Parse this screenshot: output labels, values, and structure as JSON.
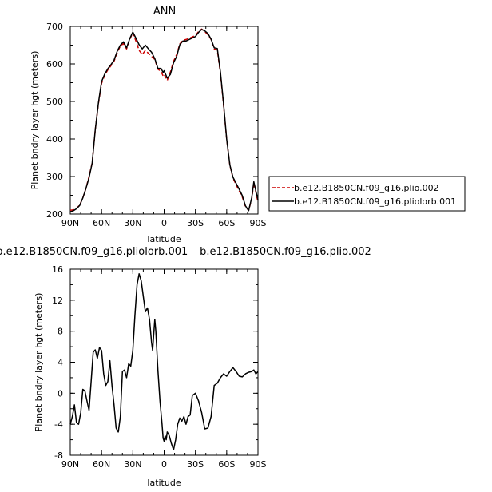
{
  "chart_data": [
    {
      "type": "line",
      "title": "ANN",
      "xlabel": "latitude",
      "ylabel": "Planet bndry layer hgt (meters)",
      "xlim": [
        90,
        -90
      ],
      "ylim": [
        200,
        700
      ],
      "x_ticks": [
        90,
        60,
        30,
        0,
        -30,
        -60,
        -90
      ],
      "x_tick_labels": [
        "90N",
        "60N",
        "30N",
        "0",
        "30S",
        "60S",
        "90S"
      ],
      "y_ticks": [
        200,
        300,
        400,
        500,
        600,
        700
      ],
      "legend_position": "right",
      "series": [
        {
          "name": "b.e12.B1850CN.f09_g16.plio.002",
          "color": "#cc0000",
          "dash": "dashed",
          "x": [
            90,
            87,
            84,
            81,
            78,
            75,
            72,
            69,
            66,
            63,
            60,
            57,
            54,
            51,
            48,
            45,
            42,
            39,
            36,
            33,
            30,
            27,
            24,
            21,
            18,
            15,
            12,
            9,
            6,
            3,
            1,
            0,
            -3,
            -6,
            -9,
            -12,
            -15,
            -18,
            -21,
            -24,
            -27,
            -30,
            -33,
            -36,
            -39,
            -42,
            -45,
            -48,
            -51,
            -54,
            -57,
            -60,
            -63,
            -66,
            -69,
            -72,
            -75,
            -78,
            -81,
            -84,
            -86,
            -88,
            -90
          ],
          "y": [
            210,
            211,
            215,
            224,
            243,
            268,
            300,
            336,
            425,
            495,
            548,
            570,
            584,
            595,
            607,
            630,
            648,
            654,
            640,
            665,
            683,
            660,
            636,
            625,
            636,
            628,
            620,
            612,
            586,
            580,
            568,
            572,
            556,
            578,
            607,
            625,
            653,
            663,
            665,
            668,
            672,
            676,
            686,
            693,
            686,
            678,
            665,
            640,
            637,
            575,
            490,
            400,
            330,
            296,
            278,
            262,
            245,
            220,
            210,
            240,
            283,
            258,
            232
          ]
        },
        {
          "name": "b.e12.B1850CN.f09_g16.pliolorb.001",
          "color": "#000000",
          "dash": "solid",
          "x": [
            90,
            87,
            84,
            81,
            78,
            75,
            72,
            69,
            66,
            63,
            60,
            57,
            54,
            51,
            48,
            45,
            42,
            39,
            36,
            33,
            30,
            27,
            24,
            21,
            18,
            15,
            12,
            9,
            6,
            3,
            1,
            0,
            -3,
            -6,
            -9,
            -12,
            -15,
            -18,
            -21,
            -24,
            -27,
            -30,
            -33,
            -36,
            -39,
            -42,
            -45,
            -48,
            -51,
            -54,
            -57,
            -60,
            -63,
            -66,
            -69,
            -72,
            -75,
            -78,
            -81,
            -84,
            -86,
            -88,
            -90
          ],
          "y": [
            206,
            209,
            214,
            223,
            243,
            268,
            297,
            336,
            425,
            497,
            553,
            573,
            587,
            598,
            610,
            634,
            650,
            659,
            643,
            667,
            685,
            668,
            651,
            640,
            650,
            640,
            631,
            614,
            588,
            588,
            577,
            582,
            562,
            572,
            603,
            620,
            651,
            661,
            661,
            665,
            669,
            673,
            684,
            692,
            688,
            681,
            666,
            643,
            641,
            578,
            494,
            400,
            331,
            298,
            282,
            266,
            249,
            222,
            209,
            244,
            286,
            261,
            238
          ]
        }
      ]
    },
    {
      "type": "line",
      "title": "b.e12.B1850CN.f09_g16.pliolorb.001 – b.e12.B1850CN.f09_g16.plio.002",
      "xlabel": "latitude",
      "ylabel": "Planet bndry layer hgt (meters)",
      "xlim": [
        90,
        -90
      ],
      "ylim": [
        -8,
        16
      ],
      "x_ticks": [
        90,
        60,
        30,
        0,
        -30,
        -60,
        -90
      ],
      "x_tick_labels": [
        "90N",
        "60N",
        "30N",
        "0",
        "30S",
        "60S",
        "90S"
      ],
      "y_ticks": [
        -8,
        -4,
        0,
        4,
        8,
        12,
        16
      ],
      "series": [
        {
          "color": "#000000",
          "dash": "solid",
          "x": [
            90,
            88,
            86,
            84,
            82,
            80,
            78,
            76,
            74,
            72,
            70,
            68,
            66,
            64,
            62,
            60,
            58,
            56,
            54,
            52,
            50,
            48,
            46,
            44,
            42,
            40,
            38,
            36,
            34,
            32,
            30,
            28,
            26,
            24,
            22,
            20,
            18,
            16,
            14,
            13,
            12,
            11,
            10,
            9,
            8,
            6,
            4,
            2,
            1,
            0,
            -1,
            -2,
            -3,
            -5,
            -7,
            -9,
            -11,
            -13,
            -15,
            -17,
            -19,
            -21,
            -23,
            -25,
            -27,
            -30,
            -33,
            -36,
            -39,
            -42,
            -45,
            -48,
            -51,
            -54,
            -57,
            -60,
            -63,
            -66,
            -69,
            -72,
            -75,
            -78,
            -81,
            -84,
            -86,
            -88,
            -90
          ],
          "y": [
            -4,
            -3,
            -1.5,
            -3.8,
            -4.0,
            -2.5,
            0.5,
            0.3,
            -1.0,
            -2.2,
            1.5,
            5.3,
            5.6,
            4.5,
            5.9,
            5.5,
            2.5,
            1.0,
            1.5,
            4.2,
            1.0,
            -1.5,
            -4.5,
            -5.0,
            -3.0,
            2.8,
            3.0,
            2.0,
            3.8,
            3.5,
            5.5,
            10.0,
            14.0,
            15.4,
            14.5,
            12.5,
            10.5,
            11.0,
            9.5,
            8.0,
            6.5,
            5.5,
            7.5,
            9.5,
            8.0,
            3.0,
            -1.0,
            -4.0,
            -5.8,
            -6.2,
            -5.5,
            -6.0,
            -5.0,
            -5.5,
            -6.5,
            -7.3,
            -6.0,
            -4.0,
            -3.2,
            -3.6,
            -3.0,
            -4.0,
            -3.0,
            -2.8,
            -0.3,
            0.0,
            -1.0,
            -2.5,
            -4.6,
            -4.5,
            -3.0,
            1.0,
            1.3,
            2.0,
            2.5,
            2.2,
            2.8,
            3.3,
            2.8,
            2.2,
            2.1,
            2.5,
            2.7,
            2.8,
            3.0,
            2.5,
            2.8
          ]
        }
      ]
    }
  ]
}
